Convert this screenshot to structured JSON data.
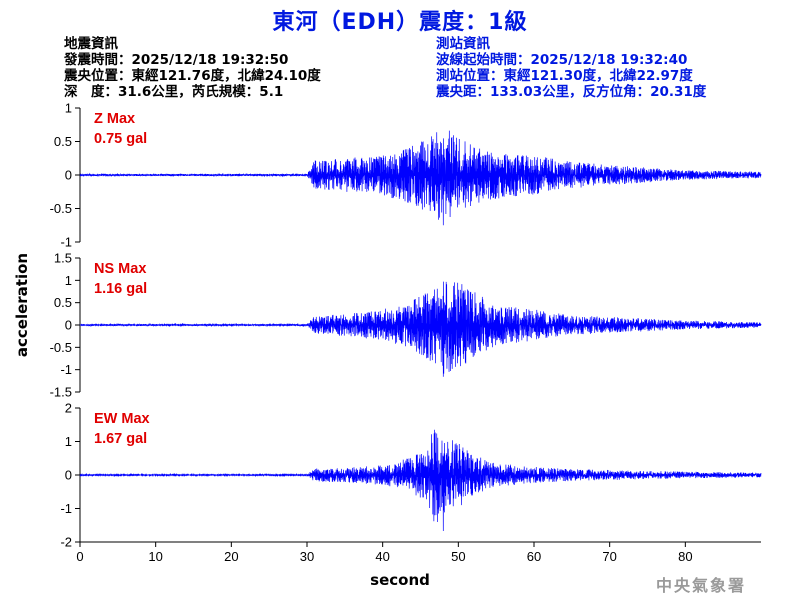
{
  "title": "東河（EDH）震度：1級",
  "quake_info": {
    "heading": "地震資訊",
    "origin_time": "發震時間：2025/12/18 19:32:50",
    "epicenter": "震央位置：東經121.76度，北緯24.10度",
    "depth_magnitude": "深　度：31.6公里，芮氏規模：5.1"
  },
  "station_info": {
    "heading": "測站資訊",
    "wave_start": "波線起始時間：2025/12/18 19:32:40",
    "station_location": "測站位置：東經121.30度，北緯22.97度",
    "distance_azimuth": "震央距：133.03公里，反方位角：20.31度"
  },
  "agency": "中央氣象署",
  "colors": {
    "title": "#0018e0",
    "station_info": "#0018e0",
    "trace": "#0000ff",
    "panel_label": "#e00000",
    "agency": "#9a9a9a"
  },
  "chart_data": {
    "type": "line",
    "xlabel": "second",
    "ylabel": "acceleration",
    "xlim": [
      0,
      90
    ],
    "xticks": [
      0,
      10,
      20,
      30,
      40,
      50,
      60,
      70,
      80
    ],
    "signal_onset_s": 30.5,
    "peak_time_s": 48,
    "grid": false,
    "panels": [
      {
        "component": "Z",
        "label": "Z Max",
        "max_label": "0.75 gal",
        "max_gal": 0.75,
        "ylim": [
          -1,
          1
        ],
        "yticks": [
          -1,
          -0.5,
          0,
          0.5,
          1
        ],
        "yticklabels": [
          "-1",
          "-0.5",
          "0",
          "0.5",
          "1"
        ],
        "envelope": [
          [
            0,
            0.015
          ],
          [
            30,
            0.015
          ],
          [
            31,
            0.22
          ],
          [
            35,
            0.25
          ],
          [
            40,
            0.3
          ],
          [
            44,
            0.45
          ],
          [
            47,
            0.62
          ],
          [
            48,
            0.75
          ],
          [
            50,
            0.55
          ],
          [
            53,
            0.4
          ],
          [
            57,
            0.32
          ],
          [
            60,
            0.3
          ],
          [
            65,
            0.2
          ],
          [
            70,
            0.15
          ],
          [
            80,
            0.07
          ],
          [
            90,
            0.05
          ]
        ]
      },
      {
        "component": "NS",
        "label": "NS Max",
        "max_label": "1.16 gal",
        "max_gal": 1.16,
        "ylim": [
          -1.5,
          1.5
        ],
        "yticks": [
          -1.5,
          -1,
          -0.5,
          0,
          0.5,
          1,
          1.5
        ],
        "yticklabels": [
          "-1.5",
          "-1",
          "-0.5",
          "0",
          "0.5",
          "1",
          "1.5"
        ],
        "envelope": [
          [
            0,
            0.02
          ],
          [
            30,
            0.02
          ],
          [
            31,
            0.2
          ],
          [
            35,
            0.25
          ],
          [
            40,
            0.35
          ],
          [
            44,
            0.55
          ],
          [
            47,
            0.9
          ],
          [
            48,
            1.1
          ],
          [
            50,
            1.0
          ],
          [
            52,
            0.75
          ],
          [
            55,
            0.45
          ],
          [
            60,
            0.35
          ],
          [
            65,
            0.22
          ],
          [
            70,
            0.18
          ],
          [
            80,
            0.1
          ],
          [
            90,
            0.06
          ]
        ]
      },
      {
        "component": "EW",
        "label": "EW Max",
        "max_label": "1.67 gal",
        "max_gal": 1.67,
        "ylim": [
          -2,
          2
        ],
        "yticks": [
          -2,
          -1,
          0,
          1,
          2
        ],
        "yticklabels": [
          "-2",
          "-1",
          "0",
          "1",
          "2"
        ],
        "envelope": [
          [
            0,
            0.02
          ],
          [
            30,
            0.02
          ],
          [
            31,
            0.2
          ],
          [
            35,
            0.22
          ],
          [
            40,
            0.3
          ],
          [
            44,
            0.55
          ],
          [
            46,
            0.9
          ],
          [
            47,
            1.6
          ],
          [
            48,
            1.15
          ],
          [
            50,
            1.0
          ],
          [
            52,
            0.6
          ],
          [
            55,
            0.35
          ],
          [
            60,
            0.25
          ],
          [
            65,
            0.18
          ],
          [
            70,
            0.15
          ],
          [
            80,
            0.1
          ],
          [
            90,
            0.07
          ]
        ]
      }
    ]
  }
}
